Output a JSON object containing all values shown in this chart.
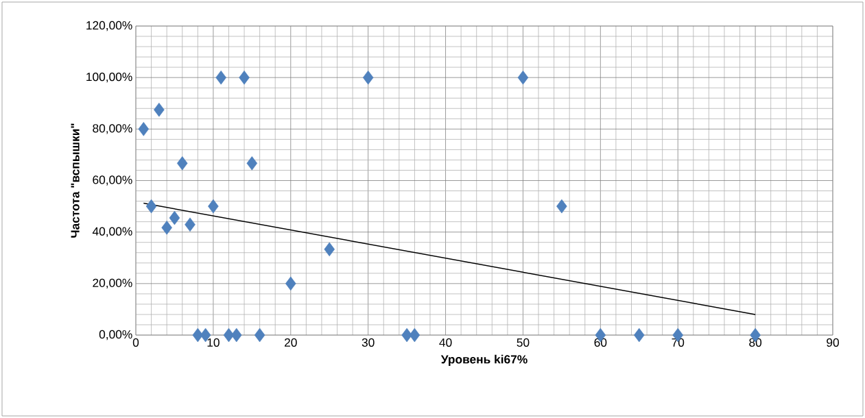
{
  "chart_data": {
    "type": "scatter",
    "xlabel": "Уровень ki67%",
    "ylabel": "Частота \"вспышки\"",
    "xlim": [
      0,
      90
    ],
    "xticks": [
      0,
      10,
      20,
      30,
      40,
      50,
      60,
      70,
      80,
      90
    ],
    "ylim": [
      0,
      120
    ],
    "yticks": [
      {
        "value": 0,
        "label": "0,00%"
      },
      {
        "value": 20,
        "label": "20,00%"
      },
      {
        "value": 40,
        "label": "40,00%"
      },
      {
        "value": 60,
        "label": "60,00%"
      },
      {
        "value": 80,
        "label": "80,00%"
      },
      {
        "value": 100,
        "label": "100,00%"
      },
      {
        "value": 120,
        "label": "120,00%"
      }
    ],
    "grid": true,
    "marker": "diamond",
    "series": [
      {
        "color": "#4f81bd",
        "x": [
          1,
          2,
          3,
          4,
          5,
          6,
          7,
          8,
          9,
          10,
          11,
          12,
          13,
          14,
          15,
          16,
          20,
          25,
          30,
          35,
          36,
          50,
          55,
          60,
          65,
          70,
          80
        ],
        "values": [
          80,
          50,
          87.5,
          41.7,
          45.5,
          66.7,
          42.9,
          0,
          0,
          50,
          100,
          0,
          0,
          100,
          66.7,
          0,
          20,
          33.3,
          100,
          0,
          0,
          100,
          50,
          0,
          0,
          0,
          0
        ]
      },
      {
        "type": "line",
        "color": "#000000",
        "marker": "none",
        "line_style": "solid",
        "x": [
          1,
          80
        ],
        "values": [
          51.2,
          8
        ]
      }
    ]
  }
}
